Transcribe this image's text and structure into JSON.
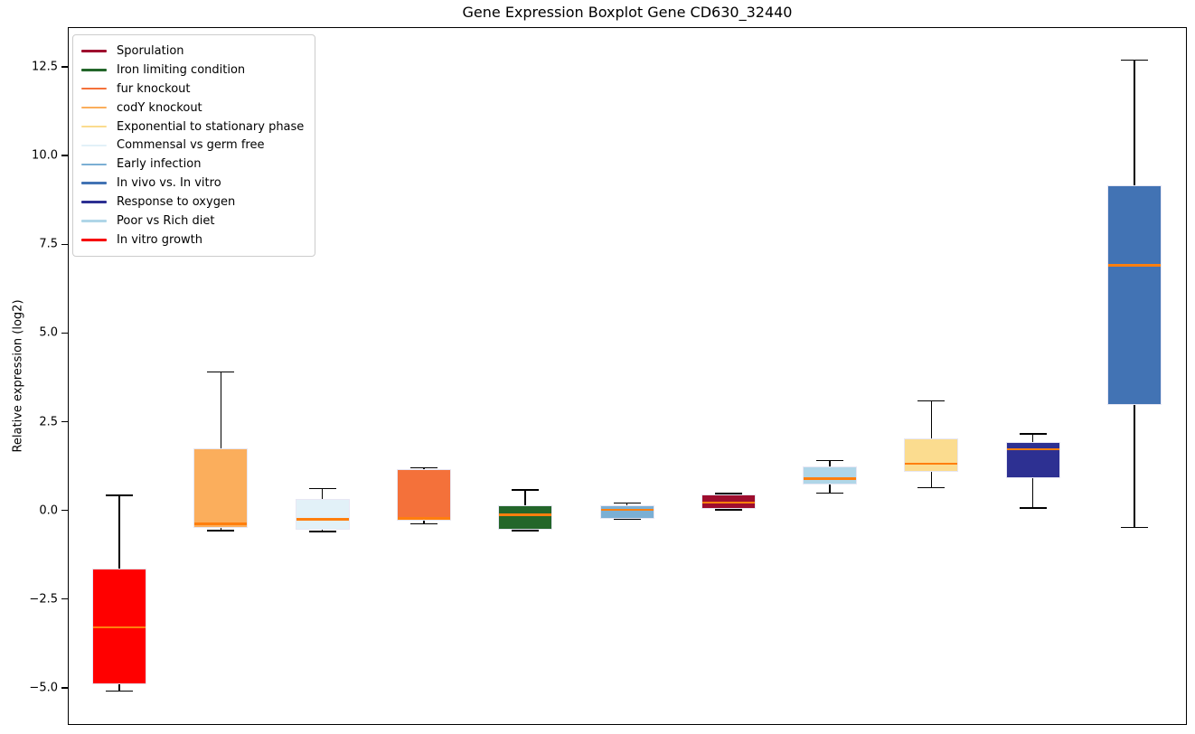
{
  "chart_data": {
    "type": "boxplot",
    "title": "Gene Expression Boxplot Gene CD630_32440",
    "xlabel": "",
    "ylabel": "Relative expression (log2)",
    "ylim": [
      -6.0,
      13.6
    ],
    "yticks": [
      12.5,
      10.0,
      7.5,
      5.0,
      2.5,
      0.0,
      -2.5,
      -5.0
    ],
    "grid": false,
    "legend_position": "upper left",
    "x_tick_labels_shown": false,
    "median_color": "#FF7F0E",
    "whisker_color": "#000000",
    "legend": [
      {
        "label": "Sporulation",
        "color": "#9E0D2E"
      },
      {
        "label": "Iron limiting condition",
        "color": "#23662A"
      },
      {
        "label": "fur knockout",
        "color": "#F4713A"
      },
      {
        "label": "codY knockout",
        "color": "#FBAE5C"
      },
      {
        "label": "Exponential to stationary phase",
        "color": "#FBDC8F"
      },
      {
        "label": "Commensal vs germ free",
        "color": "#E2F1F8"
      },
      {
        "label": "Early infection",
        "color": "#7BAFD4"
      },
      {
        "label": "In vivo vs. In vitro",
        "color": "#4273B4"
      },
      {
        "label": "Response to oxygen",
        "color": "#2D3092"
      },
      {
        "label": "Poor vs Rich diet",
        "color": "#AFD6E8"
      },
      {
        "label": "In vitro growth",
        "color": "#F70000"
      }
    ],
    "boxes": [
      {
        "label": "In vitro growth",
        "color": "#FF0000",
        "whisker_low": -5.1,
        "q1": -4.9,
        "median": -3.3,
        "q3": -1.65,
        "whisker_high": 0.42
      },
      {
        "label": "codY knockout",
        "color": "#FBAE5C",
        "whisker_low": -0.57,
        "q1": -0.5,
        "median": -0.38,
        "q3": 1.76,
        "whisker_high": 3.9
      },
      {
        "label": "Commensal vs germ free",
        "color": "#E2F1F8",
        "whisker_low": -0.6,
        "q1": -0.55,
        "median": -0.25,
        "q3": 0.31,
        "whisker_high": 0.62
      },
      {
        "label": "fur knockout",
        "color": "#F4713A",
        "whisker_low": -0.38,
        "q1": -0.29,
        "median": -0.23,
        "q3": 1.15,
        "whisker_high": 1.2
      },
      {
        "label": "Iron limiting condition",
        "color": "#23662A",
        "whisker_low": -0.57,
        "q1": -0.55,
        "median": -0.12,
        "q3": 0.13,
        "whisker_high": 0.58
      },
      {
        "label": "Early infection",
        "color": "#7BAFD4",
        "whisker_low": -0.25,
        "q1": -0.23,
        "median": 0.01,
        "q3": 0.15,
        "whisker_high": 0.2
      },
      {
        "label": "Sporulation",
        "color": "#9E0D2E",
        "whisker_low": 0.01,
        "q1": 0.03,
        "median": 0.22,
        "q3": 0.45,
        "whisker_high": 0.47
      },
      {
        "label": "Poor vs Rich diet",
        "color": "#AFD6E8",
        "whisker_low": 0.49,
        "q1": 0.72,
        "median": 0.9,
        "q3": 1.23,
        "whisker_high": 1.4
      },
      {
        "label": "Exponential to stationary phase",
        "color": "#FBDC8F",
        "whisker_low": 0.64,
        "q1": 1.09,
        "median": 1.31,
        "q3": 2.02,
        "whisker_high": 3.09
      },
      {
        "label": "Response to oxygen",
        "color": "#2D3092",
        "whisker_low": 0.07,
        "q1": 0.9,
        "median": 1.72,
        "q3": 1.93,
        "whisker_high": 2.16
      },
      {
        "label": "In vivo vs. In vitro",
        "color": "#4273B4",
        "whisker_low": -0.48,
        "q1": 2.97,
        "median": 6.91,
        "q3": 9.17,
        "whisker_high": 12.69
      }
    ]
  }
}
